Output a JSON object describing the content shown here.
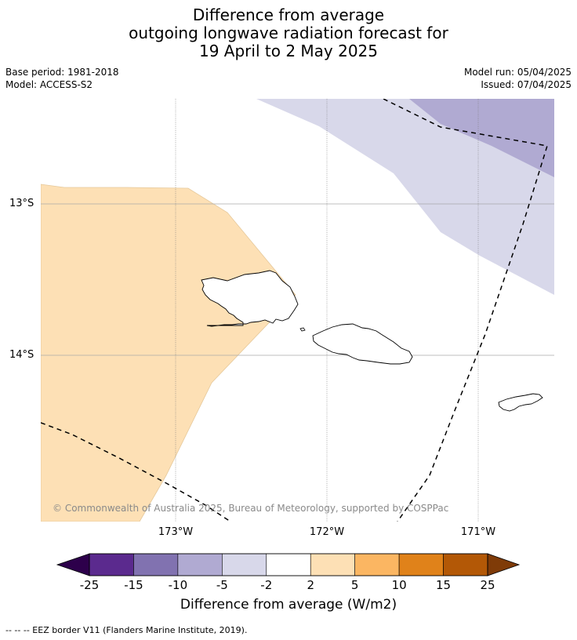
{
  "title": {
    "line1": "Difference from average",
    "line2": "outgoing longwave radiation forecast for",
    "line3": "19 April to 2 May 2025"
  },
  "meta": {
    "base_period": "Base period: 1981-2018",
    "model": "Model: ACCESS-S2",
    "model_run": "Model run: 05/04/2025",
    "issued": "Issued: 07/04/2025"
  },
  "map": {
    "region": "Samoa",
    "lon_labels": [
      "173°W",
      "172°W",
      "171°W"
    ],
    "lat_labels": [
      "13°S",
      "14°S"
    ],
    "copyright": "© Commonwealth of Australia 2025, Bureau of Meteorology, supported by COSPPac",
    "fill_colors": {
      "positive_2_5": "#fde0b5",
      "negative_2_5": "#d8d8ea",
      "negative_5_10": "#b0aad2"
    }
  },
  "colorbar": {
    "title": "Difference from average (W/m2)",
    "ticks": [
      "-25",
      "-15",
      "-10",
      "-5",
      "-2",
      "2",
      "5",
      "10",
      "15",
      "25"
    ],
    "colors": [
      "#5b2a8e",
      "#8172b0",
      "#b0aad2",
      "#d8d8ea",
      "#ffffff",
      "#fde0b5",
      "#fbb662",
      "#e0821a",
      "#b35806"
    ],
    "extend_low_color": "#2d004b",
    "extend_high_color": "#7f3b08"
  },
  "footer": {
    "legend_text": "--  --  -- EEZ border V11 (Flanders Marine Institute, 2019)."
  }
}
